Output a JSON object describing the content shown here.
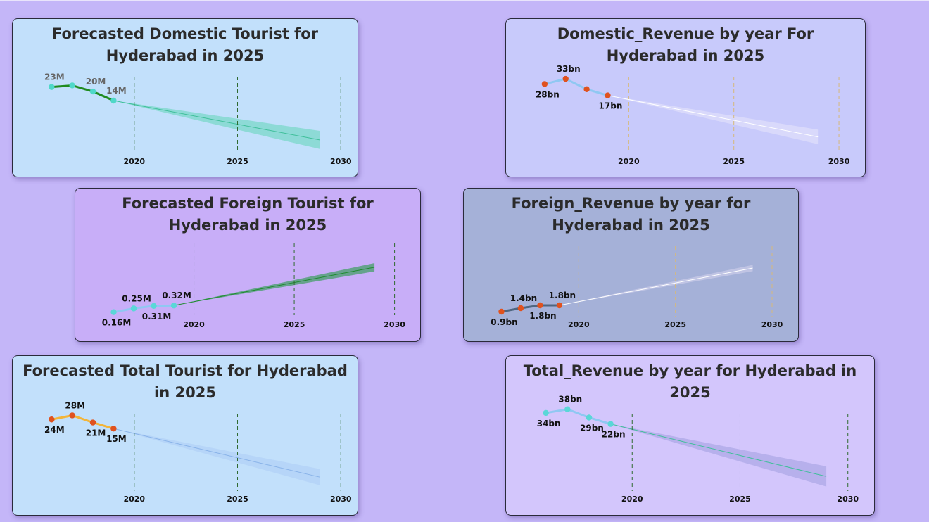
{
  "chart_data": [
    {
      "id": "domestic_tourist",
      "type": "line",
      "title": "Forecasted Domestic Tourist for Hyderabad in 2025",
      "xlabel": "",
      "ylabel": "",
      "x_ticks": [
        "2020",
        "2025",
        "2030"
      ],
      "series": [
        {
          "values": [
            {
              "x": 2016,
              "y": 23,
              "label": "23M"
            },
            {
              "x": 2017,
              "y": 24,
              "label": ""
            },
            {
              "x": 2018,
              "y": 20,
              "label": "20M"
            },
            {
              "x": 2019,
              "y": 14,
              "label": "14M"
            }
          ]
        }
      ],
      "forecast": {
        "x_end": 2029,
        "y_end": -12,
        "band": 6
      },
      "ylim": [
        -25,
        40
      ],
      "colors": {
        "bg": "#c2e0fb",
        "line": "#1f8b1f",
        "marker": "#4fd8c8",
        "forecast": "#3fbf9a",
        "band": "#84d8cf",
        "grid": "#2f6a2f",
        "label": "#666666"
      },
      "label_positions": [
        "above",
        "none",
        "above",
        "above"
      ]
    },
    {
      "id": "domestic_revenue",
      "type": "line",
      "title": "Domestic_Revenue by year For Hyderabad in 2025",
      "xlabel": "",
      "ylabel": "",
      "x_ticks": [
        "2020",
        "2025",
        "2030"
      ],
      "series": [
        {
          "values": [
            {
              "x": 2016,
              "y": 28,
              "label": "28bn"
            },
            {
              "x": 2017,
              "y": 33,
              "label": "33bn"
            },
            {
              "x": 2018,
              "y": 23,
              "label": ""
            },
            {
              "x": 2019,
              "y": 17,
              "label": "17bn"
            }
          ]
        }
      ],
      "forecast": {
        "x_end": 2029,
        "y_end": -23,
        "band": 7
      },
      "ylim": [
        -45,
        50
      ],
      "colors": {
        "bg": "#c8cafb",
        "line": "#8fc8f2",
        "marker": "#e0521e",
        "forecast": "#ffffff",
        "band": "#dcdcfa",
        "grid": "#d6b97a",
        "label": "#111111"
      },
      "label_positions": [
        "below",
        "above",
        "none",
        "below"
      ]
    },
    {
      "id": "foreign_tourist",
      "type": "line",
      "title": "Forecasted Foreign Tourist for Hyderabad in 2025",
      "xlabel": "",
      "ylabel": "",
      "x_ticks": [
        "2020",
        "2025",
        "2030"
      ],
      "series": [
        {
          "values": [
            {
              "x": 2016,
              "y": 0.16,
              "label": "0.16M"
            },
            {
              "x": 2017,
              "y": 0.25,
              "label": "0.25M"
            },
            {
              "x": 2018,
              "y": 0.31,
              "label": "0.31M"
            },
            {
              "x": 2019,
              "y": 0.32,
              "label": "0.32M"
            }
          ]
        }
      ],
      "forecast": {
        "x_end": 2029,
        "y_end": 1.24,
        "band": 0.1
      },
      "ylim": [
        -0.15,
        2.05
      ],
      "colors": {
        "bg": "#c8aef8",
        "line": "#8fc8f2",
        "marker": "#5ad7d7",
        "forecast": "#1e8a2e",
        "band": "#55a07a",
        "grid": "#2f6a2f",
        "label": "#111111"
      },
      "label_positions": [
        "below",
        "above",
        "below",
        "above"
      ]
    },
    {
      "id": "foreign_revenue",
      "type": "line",
      "title": "Foreign_Revenue by year for Hyderabad in 2025",
      "xlabel": "",
      "ylabel": "",
      "x_ticks": [
        "2020",
        "2025",
        "2030"
      ],
      "series": [
        {
          "values": [
            {
              "x": 2016,
              "y": 0.9,
              "label": "0.9bn"
            },
            {
              "x": 2017,
              "y": 1.4,
              "label": "1.4bn"
            },
            {
              "x": 2018,
              "y": 1.8,
              "label": "1.8bn"
            },
            {
              "x": 2019,
              "y": 1.8,
              "label": "1.8bn"
            }
          ]
        }
      ],
      "forecast": {
        "x_end": 2029,
        "y_end": 7.1,
        "band": 0.45
      },
      "ylim": [
        -1,
        12
      ],
      "colors": {
        "bg": "#a5b1d8",
        "line": "#4f6680",
        "marker": "#e0521e",
        "forecast": "#ffffff",
        "band": "#c4c8e6",
        "grid": "#d6b97a",
        "label": "#111111"
      },
      "label_positions": [
        "below",
        "above",
        "below",
        "above"
      ]
    },
    {
      "id": "total_tourist",
      "type": "line",
      "title": "Forecasted Total Tourist for Hyderabad in 2025",
      "xlabel": "",
      "ylabel": "",
      "x_ticks": [
        "2020",
        "2025",
        "2030"
      ],
      "series": [
        {
          "values": [
            {
              "x": 2016,
              "y": 24,
              "label": "24M"
            },
            {
              "x": 2017,
              "y": 28,
              "label": "28M"
            },
            {
              "x": 2018,
              "y": 21,
              "label": "21M"
            },
            {
              "x": 2019,
              "y": 15,
              "label": "15M"
            }
          ]
        }
      ],
      "forecast": {
        "x_end": 2029,
        "y_end": -33,
        "band": 8
      },
      "ylim": [
        -55,
        45
      ],
      "colors": {
        "bg": "#c2e0fb",
        "line": "#f2b53a",
        "marker": "#e0521e",
        "forecast": "#88b2e8",
        "band": "#b4d2f7",
        "grid": "#2f6a2f",
        "label": "#111111"
      },
      "label_positions": [
        "below",
        "above",
        "below",
        "below"
      ]
    },
    {
      "id": "total_revenue",
      "type": "line",
      "title": "Total_Revenue by year for Hyderabad in 2025",
      "xlabel": "",
      "ylabel": "",
      "x_ticks": [
        "2020",
        "2025",
        "2030"
      ],
      "series": [
        {
          "values": [
            {
              "x": 2016,
              "y": 34,
              "label": "34bn"
            },
            {
              "x": 2017,
              "y": 38,
              "label": "38bn"
            },
            {
              "x": 2018,
              "y": 29,
              "label": "29bn"
            },
            {
              "x": 2019,
              "y": 22,
              "label": "22bn"
            }
          ]
        }
      ],
      "forecast": {
        "x_end": 2029,
        "y_end": -35,
        "band": 11
      },
      "ylim": [
        -60,
        50
      ],
      "colors": {
        "bg": "#d3c6fc",
        "line": "#8fc8f2",
        "marker": "#5ad7d7",
        "forecast": "#3fbf9a",
        "band": "#b1abe9",
        "grid": "#2f6a2f",
        "label": "#111111"
      },
      "label_positions": [
        "below",
        "above",
        "below",
        "below"
      ]
    }
  ]
}
